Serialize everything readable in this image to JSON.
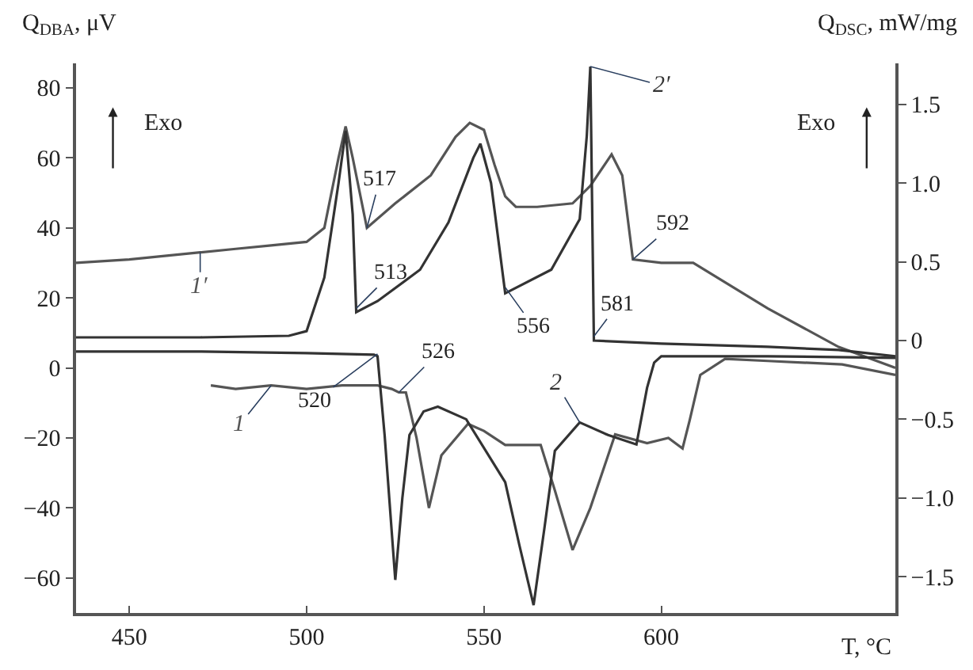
{
  "chart_data": {
    "type": "line",
    "xlabel": "T, °C",
    "ylabel": "Q$_{DBA}$, μV",
    "y2label": "Q$_{DSC}$, mW/mg",
    "xlim": [
      435,
      666
    ],
    "xticks": [
      450,
      500,
      550,
      600
    ],
    "ylim": [
      -70,
      87
    ],
    "yticks": [
      {
        "value": -60,
        "label": "−60"
      },
      {
        "value": -40,
        "label": "−40"
      },
      {
        "value": -20,
        "label": "−20"
      },
      0,
      20,
      40,
      60,
      80
    ],
    "y2lim": [
      -1.73,
      1.76
    ],
    "y2ticks": [
      {
        "value": -1.5,
        "label": "−1.5"
      },
      {
        "value": -1.0,
        "label": "−1.0"
      },
      {
        "value": -0.5,
        "label": "−0.5"
      },
      0,
      0.5,
      {
        "value": 1.0,
        "label": "1.0"
      },
      1.5
    ],
    "legend": false,
    "marker": "none",
    "line_style": "solid",
    "series": [
      {
        "name": "1′",
        "color": "#555555",
        "x": [
          435,
          450,
          460,
          470,
          480,
          490,
          500,
          505,
          509,
          511,
          513,
          517,
          525,
          535,
          542,
          546,
          550,
          553,
          556,
          559,
          565,
          575,
          580,
          586,
          589,
          592,
          600,
          609,
          630,
          650,
          666
        ],
        "values": [
          30,
          31,
          32,
          33,
          34,
          35,
          36,
          40,
          60,
          69,
          60,
          40,
          47,
          55,
          66,
          70,
          68,
          58,
          49,
          46,
          46,
          47,
          52,
          61,
          55,
          31,
          30,
          30,
          17,
          6,
          0
        ]
      },
      {
        "name": "2′",
        "color": "#333333",
        "axis": "y2",
        "x": [
          435,
          470,
          495,
          500,
          505,
          509,
          511,
          513,
          514,
          520,
          532,
          540,
          547,
          549,
          552,
          556,
          569,
          577,
          579,
          580,
          581,
          600,
          630,
          650,
          666
        ],
        "values": [
          0.02,
          0.02,
          0.03,
          0.06,
          0.4,
          1.0,
          1.33,
          0.8,
          0.18,
          0.25,
          0.45,
          0.75,
          1.16,
          1.25,
          1.0,
          0.3,
          0.45,
          0.77,
          1.3,
          1.74,
          0.0,
          -0.02,
          -0.04,
          -0.06,
          -0.1
        ]
      },
      {
        "name": "1",
        "color": "#555555",
        "x": [
          473,
          480,
          490,
          500,
          510,
          520,
          524,
          526,
          528,
          531,
          534.5,
          538,
          545.5,
          550,
          556,
          566,
          570,
          575,
          580,
          587,
          596,
          602,
          606,
          608,
          611,
          618,
          630,
          651,
          666
        ],
        "values": [
          -5,
          -6,
          -5,
          -6,
          -5,
          -5,
          -6,
          -7,
          -7,
          -20,
          -40,
          -25,
          -16,
          -18,
          -22,
          -22,
          -35,
          -52,
          -40,
          -19,
          -21.5,
          -20,
          -23,
          -15,
          -2,
          2.6,
          2,
          1,
          -2
        ]
      },
      {
        "name": "2",
        "color": "#333333",
        "axis": "y2",
        "x": [
          435,
          470,
          500,
          519,
          520,
          522,
          525,
          527,
          529,
          533,
          537,
          545,
          556,
          560,
          564,
          567,
          570,
          577,
          585,
          593,
          596,
          598,
          600,
          630,
          666
        ],
        "values": [
          -0.07,
          -0.07,
          -0.08,
          -0.09,
          -0.1,
          -0.6,
          -1.52,
          -1.0,
          -0.6,
          -0.45,
          -0.42,
          -0.5,
          -0.9,
          -1.3,
          -1.68,
          -1.2,
          -0.7,
          -0.52,
          -0.6,
          -0.66,
          -0.3,
          -0.14,
          -0.1,
          -0.1,
          -0.11
        ]
      }
    ],
    "annotations": [
      {
        "text": "517",
        "x": 517,
        "y": 40
      },
      {
        "text": "513",
        "x": 514,
        "y": 17
      },
      {
        "text": "556",
        "x": 556,
        "y": 23
      },
      {
        "text": "581",
        "x": 581,
        "y": 9
      },
      {
        "text": "592",
        "x": 592,
        "y": 31
      },
      {
        "text": "520",
        "x": 520,
        "y": 4
      },
      {
        "text": "526",
        "x": 526,
        "y": -7
      },
      "Exo",
      "Exo"
    ]
  }
}
